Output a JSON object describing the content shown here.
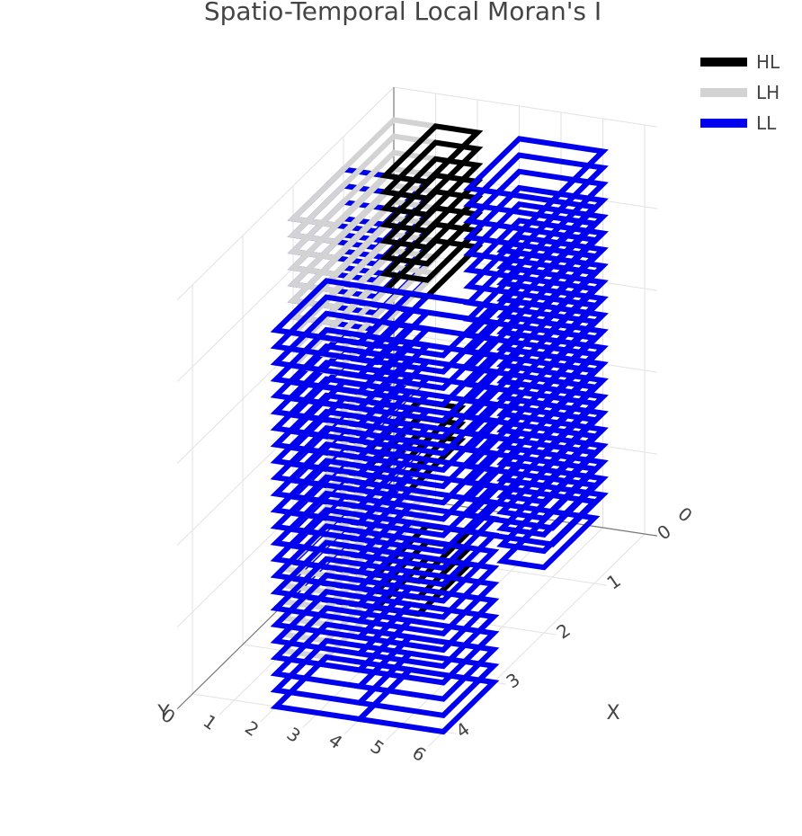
{
  "chart_data": {
    "type": "line3d",
    "title": "Spatio-Temporal Local Moran's I",
    "xlabel": "X",
    "ylabel": "Y",
    "zlabel": "",
    "x_ticks": [
      "0",
      "1",
      "2",
      "3",
      "4",
      "5",
      "6"
    ],
    "y_ticks": [
      "0",
      "1",
      "2",
      "3",
      "4"
    ],
    "z_ticks": [
      "0"
    ],
    "grid": true,
    "legend_position": "top-right",
    "series": [
      {
        "name": "HL",
        "color": "#000000"
      },
      {
        "name": "LH",
        "color": "#d3d3d3"
      },
      {
        "name": "LL",
        "color": "#0000ee"
      }
    ],
    "time_slices": 24,
    "cells": [
      {
        "cluster": "LL",
        "x_range": [
          0,
          2
        ],
        "y_range": [
          1,
          2
        ],
        "z_range": [
          0,
          23
        ]
      },
      {
        "cluster": "LH",
        "x_range": [
          0,
          1
        ],
        "y_range": [
          0,
          2
        ],
        "z_range": [
          14,
          23
        ]
      },
      {
        "cluster": "HL",
        "x_range": [
          1,
          2
        ],
        "y_range": [
          0,
          1
        ],
        "z_range": [
          16,
          23
        ]
      },
      {
        "cluster": "LH",
        "x_range": [
          1,
          2
        ],
        "y_range": [
          1,
          3
        ],
        "z_range": [
          0,
          5
        ]
      },
      {
        "cluster": "HL",
        "x_range": [
          2,
          3
        ],
        "y_range": [
          1,
          2
        ],
        "z_range": [
          0,
          2
        ]
      },
      {
        "cluster": "LH",
        "x_range": [
          2,
          3
        ],
        "y_range": [
          2,
          4
        ],
        "z_range": [
          10,
          14
        ]
      },
      {
        "cluster": "HL",
        "x_range": [
          3,
          4
        ],
        "y_range": [
          2,
          3
        ],
        "z_range": [
          11,
          13
        ]
      },
      {
        "cluster": "LL",
        "x_range": [
          2,
          4
        ],
        "y_range": [
          3,
          4
        ],
        "z_range": [
          0,
          23
        ]
      },
      {
        "cluster": "LL",
        "x_range": [
          4,
          6
        ],
        "y_range": [
          3,
          4
        ],
        "z_range": [
          0,
          23
        ]
      },
      {
        "cluster": "LL",
        "x_range": [
          3,
          5
        ],
        "y_range": [
          0,
          1
        ],
        "z_range": [
          2,
          23
        ]
      },
      {
        "cluster": "LL",
        "x_range": [
          5,
          6
        ],
        "y_range": [
          1,
          2
        ],
        "z_range": [
          4,
          23
        ]
      }
    ]
  }
}
